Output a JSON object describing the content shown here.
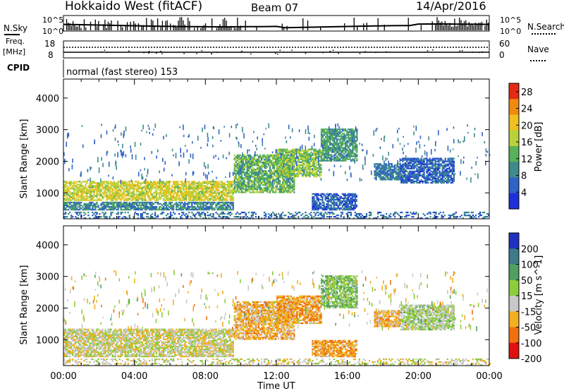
{
  "header": {
    "radar": "Hokkaido West (fitACF)",
    "beam": "Beam 07",
    "date": "14/Apr/2016"
  },
  "noise_panel": {
    "left_label": "N.Sky",
    "right_label": "N.Search",
    "left_ticks": [
      "10^5",
      "10^0"
    ],
    "right_ticks": [
      "10^5",
      "10^0"
    ]
  },
  "freq_panel": {
    "left_label_line1": "Freq.",
    "left_label_line2": "[MHz]",
    "left_ticks": [
      "18",
      "8"
    ],
    "right_label": "Nave",
    "right_ticks": [
      "60",
      "0"
    ]
  },
  "cpid_panel": {
    "label": "CPID",
    "text": "normal (fast stereo) 153"
  },
  "x_axis": {
    "title": "Time UT",
    "ticks": [
      "00:00",
      "04:00",
      "08:00",
      "12:00",
      "16:00",
      "20:00",
      "00:00"
    ]
  },
  "chart_data": [
    {
      "type": "heatmap",
      "title": "",
      "xlabel": "Time UT",
      "ylabel": "Slant Range [km]",
      "xlim": [
        0,
        24
      ],
      "ylim": [
        180,
        4600
      ],
      "y_ticks": [
        1000,
        2000,
        3000,
        4000
      ],
      "colorbar": {
        "label": "Power [dB]",
        "ticks": [
          4,
          8,
          12,
          16,
          20,
          24,
          28
        ],
        "range": [
          0,
          30
        ],
        "colors": [
          "#1f2fd9",
          "#2f63c6",
          "#3f8a8a",
          "#57b25a",
          "#b8d23a",
          "#f0c020",
          "#f08a10",
          "#e22a14"
        ]
      },
      "regions": [
        {
          "t0": 0.0,
          "t1": 9.6,
          "r0": 750,
          "r1": 1350,
          "value": 18
        },
        {
          "t0": 0.0,
          "t1": 9.6,
          "r0": 450,
          "r1": 700,
          "value": 9
        },
        {
          "t0": 9.6,
          "t1": 13.0,
          "r0": 1000,
          "r1": 2200,
          "value": 13
        },
        {
          "t0": 12.0,
          "t1": 14.5,
          "r0": 1500,
          "r1": 2400,
          "value": 15
        },
        {
          "t0": 14.5,
          "t1": 16.5,
          "r0": 2000,
          "r1": 3000,
          "value": 11
        },
        {
          "t0": 14.0,
          "t1": 16.5,
          "r0": 450,
          "r1": 950,
          "value": 6
        },
        {
          "t0": 17.5,
          "t1": 19.0,
          "r0": 1400,
          "r1": 1900,
          "value": 8
        },
        {
          "t0": 19.0,
          "t1": 22.0,
          "r0": 1300,
          "r1": 2100,
          "value": 6
        },
        {
          "t0": 0.0,
          "t1": 24.0,
          "r0": 180,
          "r1": 400,
          "value": 7
        }
      ]
    },
    {
      "type": "heatmap",
      "title": "",
      "xlabel": "Time UT",
      "ylabel": "Slant Range [km]",
      "xlim": [
        0,
        24
      ],
      "ylim": [
        180,
        4600
      ],
      "y_ticks": [
        1000,
        2000,
        3000,
        4000
      ],
      "colorbar": {
        "label": "Velocity [m s^-1]",
        "ticks": [
          200,
          100,
          50,
          15,
          -15,
          -50,
          -100,
          -200
        ],
        "colors": [
          "#2030c0",
          "#3f7a8a",
          "#4fa060",
          "#8ccd3c",
          "#c8c8c8",
          "#f0b020",
          "#f07010",
          "#e01010"
        ]
      },
      "regions": [
        {
          "t0": 0.0,
          "t1": 9.6,
          "r0": 450,
          "r1": 1350,
          "value": 0
        },
        {
          "t0": 9.6,
          "t1": 13.0,
          "r0": 1000,
          "r1": 2200,
          "value": -30
        },
        {
          "t0": 12.0,
          "t1": 14.5,
          "r0": 1500,
          "r1": 2400,
          "value": -40
        },
        {
          "t0": 14.5,
          "t1": 16.5,
          "r0": 2000,
          "r1": 3000,
          "value": 40
        },
        {
          "t0": 14.0,
          "t1": 16.5,
          "r0": 450,
          "r1": 950,
          "value": -40
        },
        {
          "t0": 17.5,
          "t1": 19.0,
          "r0": 1400,
          "r1": 1900,
          "value": -30
        },
        {
          "t0": 19.0,
          "t1": 22.0,
          "r0": 1300,
          "r1": 2100,
          "value": 20
        },
        {
          "t0": 0.0,
          "t1": 24.0,
          "r0": 180,
          "r1": 400,
          "value": 0
        }
      ]
    }
  ]
}
